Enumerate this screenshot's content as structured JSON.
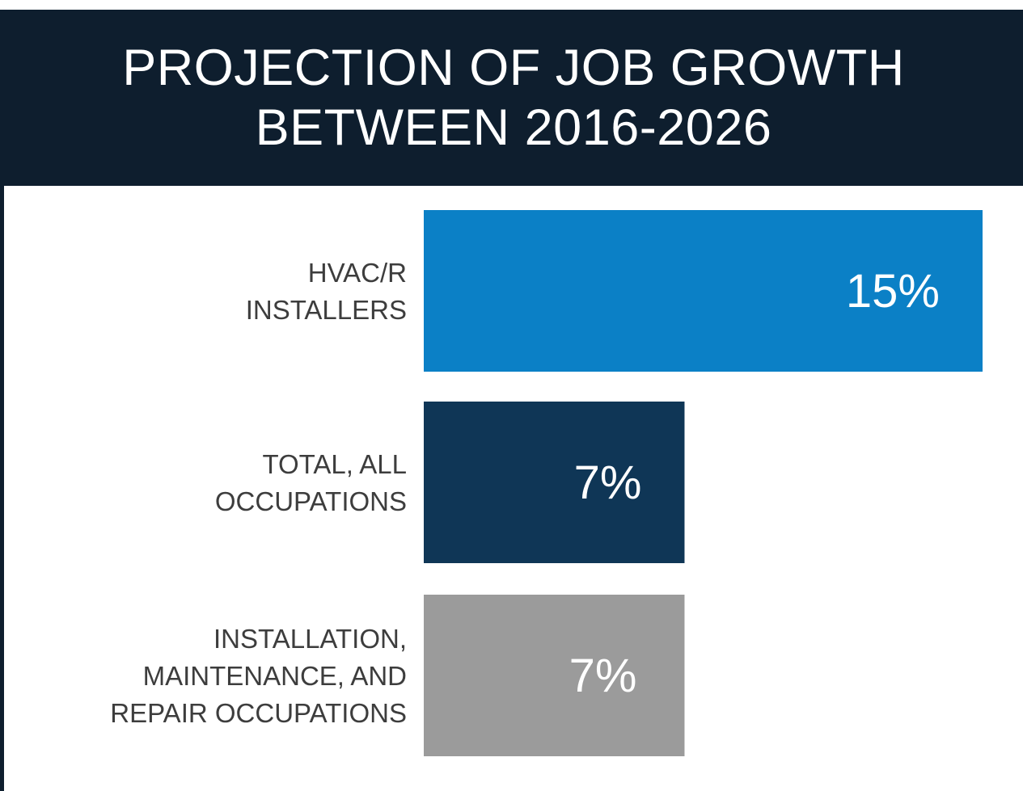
{
  "chart_data": {
    "type": "bar",
    "orientation": "horizontal",
    "title_lines": [
      "PROJECTION OF JOB GROWTH",
      "BETWEEN 2016-2026"
    ],
    "categories": [
      [
        "HVAC/R",
        "INSTALLERS"
      ],
      [
        "TOTAL, ALL",
        "OCCUPATIONS"
      ],
      [
        "INSTALLATION,",
        "MAINTENANCE, AND",
        "REPAIR OCCUPATIONS"
      ]
    ],
    "values": [
      15,
      7,
      7
    ],
    "value_labels": [
      "15%",
      "7%",
      "7%"
    ],
    "unit": "%",
    "colors": [
      "#0b80c6",
      "#0f3656",
      "#9b9b9b"
    ],
    "xlim": [
      0,
      15
    ],
    "grid": false,
    "legend": "none"
  },
  "colors": {
    "header_bg": "#0e1e2e",
    "header_text": "#ffffff",
    "label_text": "#3d3d3d",
    "value_text": "#ffffff"
  }
}
